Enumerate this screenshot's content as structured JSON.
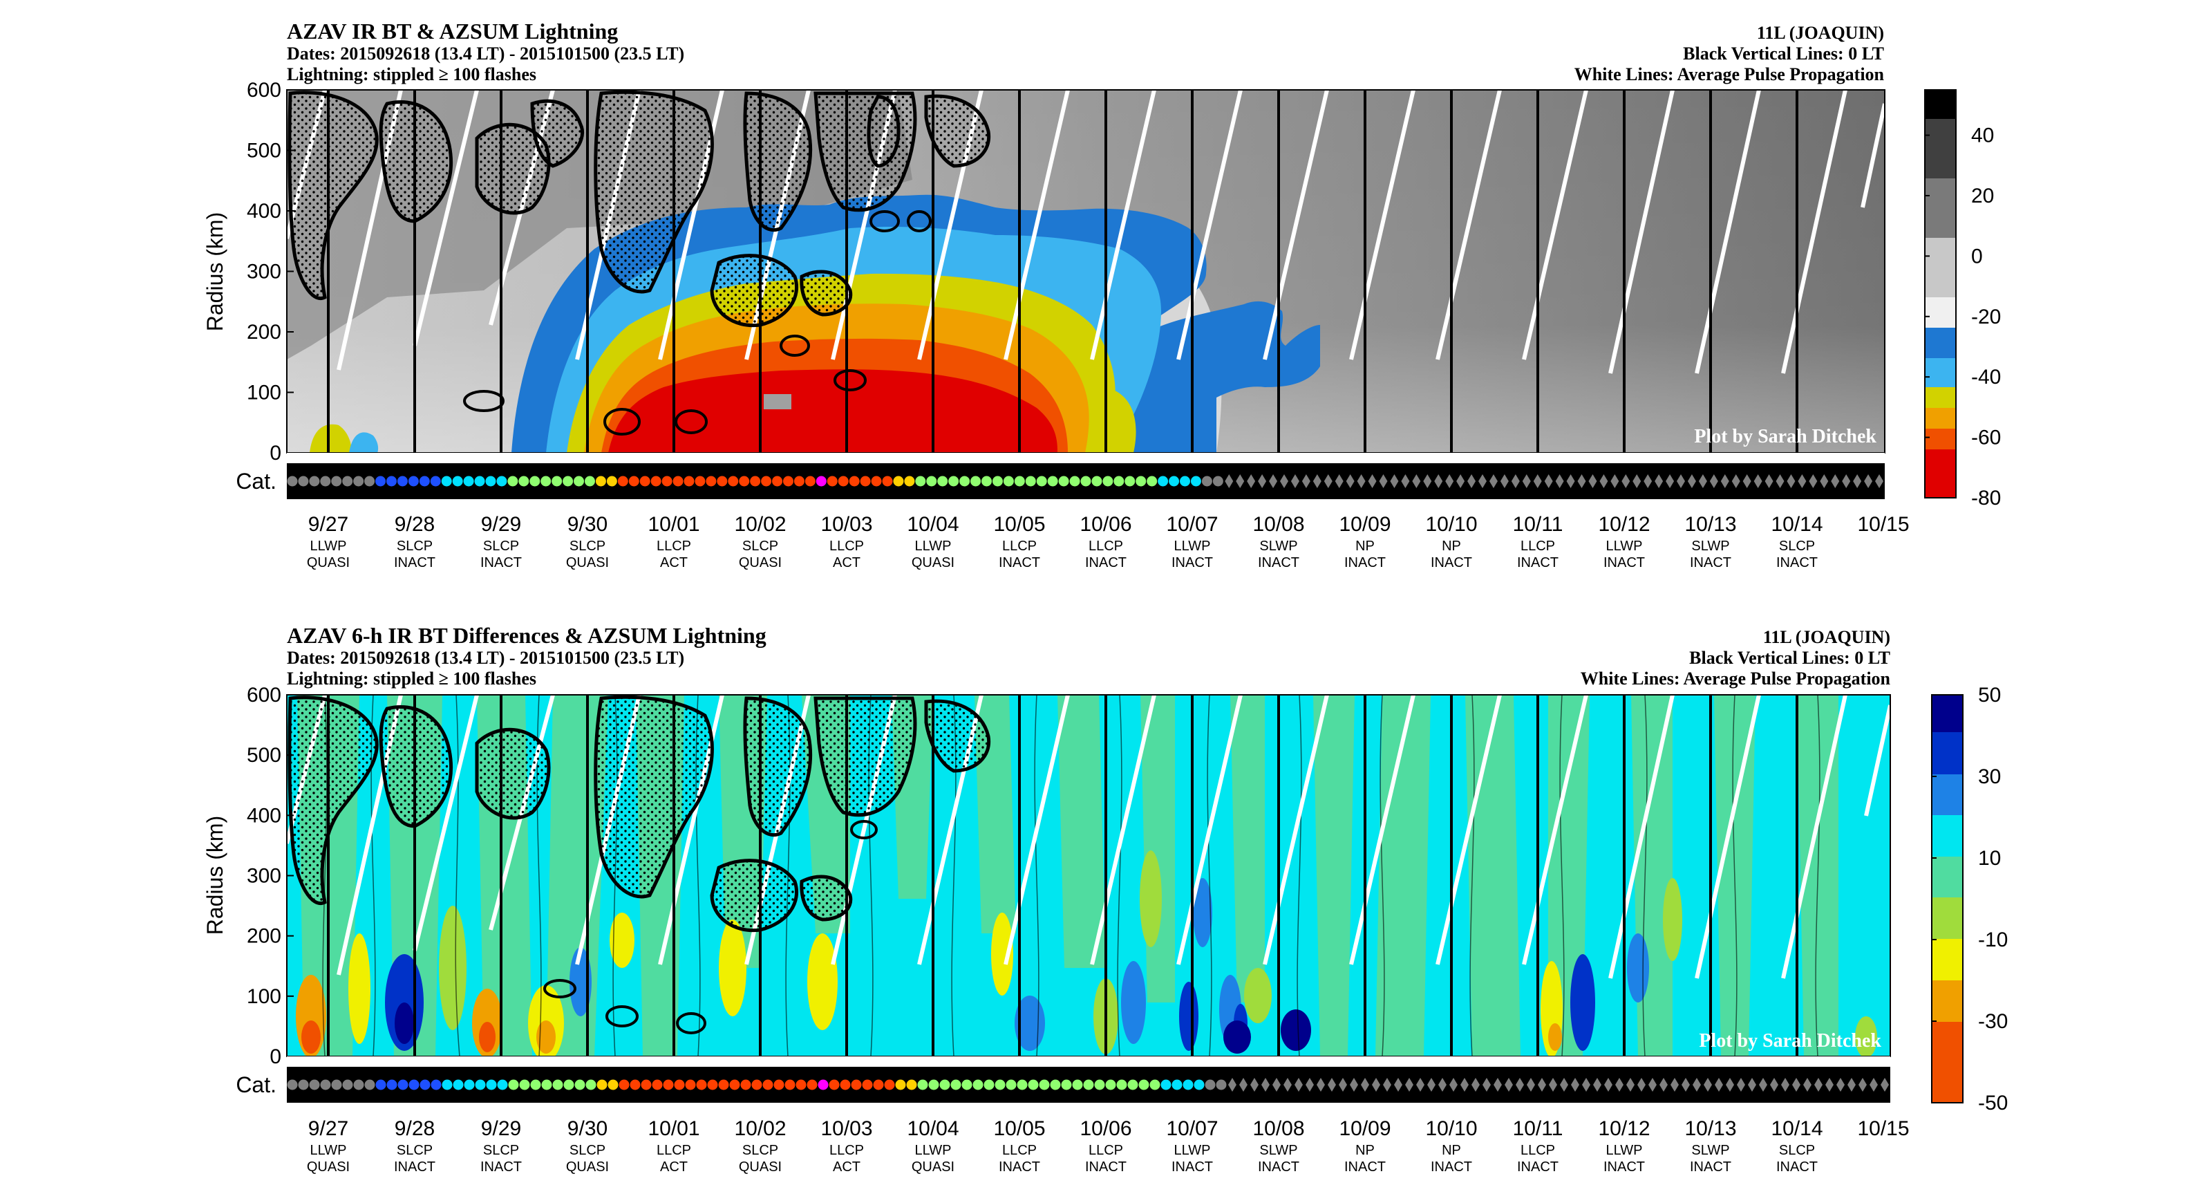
{
  "chart_data": [
    {
      "type": "heatmap",
      "title": "AZAV IR BT & AZSUM Lightning",
      "subtitle_lines": [
        "Dates: 2015092618 (13.4 LT) - 2015101500 (23.5 LT)",
        "Lightning: stippled ≥ 100 flashes"
      ],
      "right_lines": [
        "11L (JOAQUIN)",
        "Black Vertical Lines: 0 LT",
        "White Lines: Average Pulse Propagation"
      ],
      "ylabel": "Radius (km)",
      "yticks": [
        0,
        100,
        200,
        300,
        400,
        500,
        600
      ],
      "ylim": [
        0,
        600
      ],
      "cat_label": "Cat.",
      "credit": "Plot by Sarah Ditchek",
      "colorbar_ticks": [
        40,
        20,
        0,
        -20,
        -40,
        -60,
        -80
      ],
      "colorbar_range": [
        -80,
        55
      ],
      "colors": [
        "#000000",
        "#505050",
        "#a0a0a0",
        "#f0f0f0",
        "#1e78d2",
        "#3cb4f0",
        "#d2d200",
        "#f0a000",
        "#f05000",
        "#e00000"
      ]
    },
    {
      "type": "heatmap",
      "title": "AZAV 6-h IR BT Differences & AZSUM Lightning",
      "subtitle_lines": [
        "Dates: 2015092618 (13.4 LT) - 2015101500 (23.5 LT)",
        "Lightning: stippled ≥ 100 flashes"
      ],
      "right_lines": [
        "11L (JOAQUIN)",
        "Black Vertical Lines: 0 LT",
        "White Lines: Average Pulse Propagation"
      ],
      "ylabel": "Radius (km)",
      "yticks": [
        0,
        100,
        200,
        300,
        400,
        500,
        600
      ],
      "ylim": [
        0,
        600
      ],
      "cat_label": "Cat.",
      "credit": "Plot by Sarah Ditchek",
      "colorbar_ticks": [
        50,
        30,
        10,
        -10,
        -30,
        -50
      ],
      "colorbar_range": [
        -50,
        50
      ],
      "colors": [
        "#00008c",
        "#0032c8",
        "#1e82e6",
        "#00e6f0",
        "#50dca0",
        "#a0dc3c",
        "#f0f000",
        "#f0a000",
        "#f05000"
      ]
    }
  ],
  "dates": [
    "9/27",
    "9/28",
    "9/29",
    "9/30",
    "10/01",
    "10/02",
    "10/03",
    "10/04",
    "10/05",
    "10/06",
    "10/07",
    "10/08",
    "10/09",
    "10/10",
    "10/11",
    "10/12",
    "10/13",
    "10/14",
    "10/15"
  ],
  "date_labels": [
    [
      "LLWP",
      "QUASI"
    ],
    [
      "SLCP",
      "INACT"
    ],
    [
      "SLCP",
      "INACT"
    ],
    [
      "SLCP",
      "QUASI"
    ],
    [
      "LLCP",
      "ACT"
    ],
    [
      "SLCP",
      "QUASI"
    ],
    [
      "LLCP",
      "ACT"
    ],
    [
      "LLWP",
      "QUASI"
    ],
    [
      "LLCP",
      "INACT"
    ],
    [
      "LLCP",
      "INACT"
    ],
    [
      "LLWP",
      "INACT"
    ],
    [
      "SLWP",
      "INACT"
    ],
    [
      "NP",
      "INACT"
    ],
    [
      "NP",
      "INACT"
    ],
    [
      "LLCP",
      "INACT"
    ],
    [
      "LLWP",
      "INACT"
    ],
    [
      "SLWP",
      "INACT"
    ],
    [
      "SLCP",
      "INACT"
    ],
    [
      "",
      ""
    ]
  ],
  "category_colors": {
    "TD": "#808080",
    "TS": "#1e50ff",
    "C1": "#00e0ff",
    "C2": "#90ff70",
    "C3": "#ffd000",
    "C4": "#ff4000",
    "C5": "#ff00ff",
    "EX": "#404040"
  }
}
